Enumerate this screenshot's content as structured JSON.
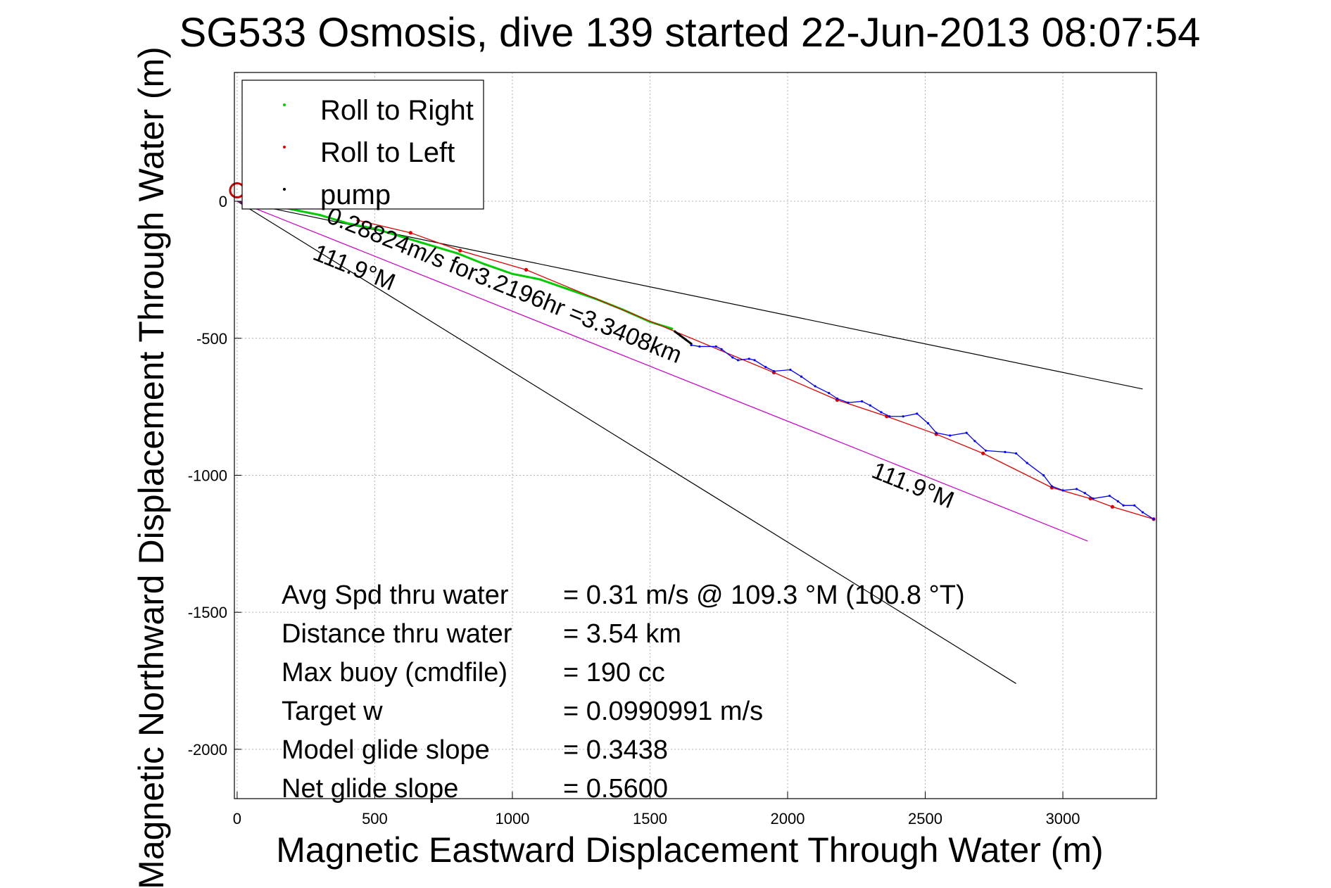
{
  "chart_data": {
    "type": "line",
    "title": "SG533 Osmosis, dive 139 started 22-Jun-2013 08:07:54",
    "xlabel": "Magnetic Eastward Displacement Through Water (m)",
    "ylabel": "Magnetic Northward Displacement Through Water (m)",
    "xlim": [
      -10,
      3340
    ],
    "ylim": [
      -2180,
      470
    ],
    "xticks": [
      0,
      500,
      1000,
      1500,
      2000,
      2500,
      3000
    ],
    "yticks": [
      0,
      -500,
      -1000,
      -1500,
      -2000
    ],
    "xtick_labels": [
      "0",
      "500",
      "1000",
      "1500",
      "2000",
      "2500",
      "3000"
    ],
    "ytick_labels": [
      "0",
      "-500",
      "-1000",
      "-1500",
      "-2000"
    ],
    "grid": true,
    "legend": {
      "position": "top-left",
      "entries": [
        {
          "label": "Roll to Right",
          "color": "#00cc00"
        },
        {
          "label": "Roll to Left",
          "color": "#e00000"
        },
        {
          "label": "pump",
          "color": "#000000"
        }
      ]
    },
    "series": [
      {
        "name": "Roll to Right",
        "color": "#00cc00",
        "x": [
          120,
          200,
          300,
          400,
          500,
          600,
          700,
          800,
          900,
          1000,
          1100,
          1200,
          1300,
          1400,
          1500,
          1580
        ],
        "y": [
          -10,
          -30,
          -50,
          -80,
          -100,
          -130,
          -160,
          -190,
          -230,
          -265,
          -285,
          -320,
          -355,
          -395,
          -440,
          -465
        ]
      },
      {
        "name": "Roll to Left",
        "color": "#e00000",
        "x": [
          440,
          630,
          810,
          1050,
          1950,
          2180,
          2360,
          2540,
          2710,
          2960,
          3100,
          3180,
          3330
        ],
        "y": [
          -70,
          -115,
          -180,
          -250,
          -625,
          -725,
          -785,
          -850,
          -920,
          -1045,
          -1085,
          -1115,
          -1160
        ]
      },
      {
        "name": "pump",
        "color": "#000000",
        "x": [
          1590,
          1610,
          1630,
          1650
        ],
        "y": [
          -475,
          -490,
          -505,
          -520
        ]
      },
      {
        "name": "",
        "color": "#0000ff",
        "x": [
          1650,
          1680,
          1740,
          1760,
          1800,
          1820,
          1860,
          1880,
          1920,
          1950,
          2010,
          2050,
          2100,
          2150,
          2180,
          2220,
          2270,
          2300,
          2340,
          2370,
          2420,
          2470,
          2510,
          2540,
          2590,
          2650,
          2680,
          2720,
          2790,
          2830,
          2870,
          2930,
          2960,
          3000,
          3050,
          3080,
          3110,
          3170,
          3200,
          3220,
          3260,
          3290,
          3330
        ],
        "y": [
          -525,
          -530,
          -530,
          -540,
          -570,
          -580,
          -575,
          -580,
          -605,
          -620,
          -615,
          -640,
          -675,
          -700,
          -720,
          -735,
          -730,
          -745,
          -770,
          -785,
          -785,
          -775,
          -810,
          -845,
          -855,
          -845,
          -875,
          -910,
          -915,
          -920,
          -955,
          -1000,
          -1040,
          -1055,
          -1050,
          -1065,
          -1085,
          -1075,
          -1095,
          -1110,
          -1110,
          -1135,
          -1160
        ]
      }
    ],
    "reference_lines": [
      {
        "color": "#000000",
        "x": [
          0,
          3290
        ],
        "y": [
          0,
          -685
        ]
      },
      {
        "color": "#000000",
        "x": [
          0,
          2830
        ],
        "y": [
          0,
          -1760
        ]
      },
      {
        "color": "#cc00cc",
        "x": [
          0,
          3090
        ],
        "y": [
          0,
          -1240
        ]
      }
    ],
    "start_marker": {
      "x": 0,
      "y": 40,
      "color": "#cc0000"
    },
    "annotations": [
      {
        "text": "0.28824m/s for3.2196hr =3.3408km",
        "x": 320,
        "y": -75,
        "rotation": 21.9
      },
      {
        "text": "111.9°M",
        "x": 270,
        "y": -210,
        "rotation": 21.9
      },
      {
        "text": "111.9°M",
        "x": 2300,
        "y": -1005,
        "rotation": 21.9
      }
    ],
    "stats": [
      {
        "label": "Avg Spd thru water",
        "value": "=  0.31 m/s @ 109.3 °M (100.8 °T)"
      },
      {
        "label": "Distance thru water",
        "value": "=  3.54 km"
      },
      {
        "label": "Max buoy (cmdfile)",
        "value": "= 190 cc"
      },
      {
        "label": "Target w",
        "value": "= 0.0990991 m/s"
      },
      {
        "label": "Model glide slope",
        "value": "= 0.3438"
      },
      {
        "label": "Net glide slope",
        "value": "= 0.5600"
      }
    ]
  }
}
